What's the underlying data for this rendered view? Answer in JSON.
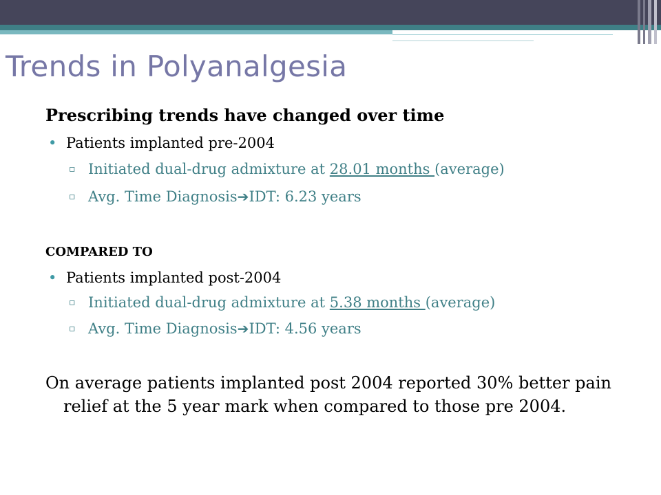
{
  "slide": {
    "title": "Trends in Polyanalgesia",
    "heading": "Prescribing trends have changed over time",
    "groups": [
      {
        "label": "Patients implanted pre-2004",
        "admixture_prefix": "Initiated dual-drug admixture at ",
        "admixture_value": "28.01 months ",
        "admixture_suffix": "(average)",
        "diag_prefix": "Avg. Time Diagnosis",
        "diag_suffix": "IDT: 6.23 years"
      },
      {
        "label": "Patients implanted post-2004",
        "admixture_prefix": "Initiated dual-drug admixture at ",
        "admixture_value": "5.38 months ",
        "admixture_suffix": "(average)",
        "diag_prefix": "Avg. Time Diagnosis",
        "diag_suffix": "IDT: 4.56 years"
      }
    ],
    "compared_label": "COMPARED TO",
    "bullet_symbol": "•",
    "sub_bullet_symbol": "▫",
    "arrow_icon": "right-arrow-icon",
    "conclusion": "On average patients implanted post 2004 reported 30% better pain relief at the 5 year mark when compared to those pre 2004."
  },
  "colors": {
    "title": "#7677a6",
    "accent_teal": "#3f7f86",
    "top_bar": "#45455a"
  }
}
